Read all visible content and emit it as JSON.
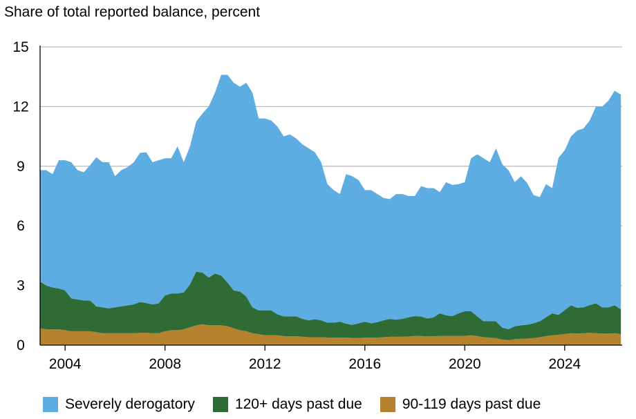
{
  "chart_data": {
    "type": "area",
    "stacked": true,
    "title": "",
    "ylabel": "Share of total reported balance, percent",
    "xlabel": "",
    "ylim": [
      0,
      15
    ],
    "yticks": [
      0,
      3,
      6,
      9,
      12,
      15
    ],
    "xlim": [
      2003.0,
      2026.3
    ],
    "xticks": [
      2004,
      2008,
      2012,
      2016,
      2020,
      2024
    ],
    "grid": "horizontal",
    "legend_position": "bottom",
    "colors": {
      "severely_derogatory": "#5DADE2",
      "days_120_plus": "#2E6B35",
      "days_90_119": "#B5832D"
    },
    "x": [
      2003.0,
      2003.25,
      2003.5,
      2003.75,
      2004.0,
      2004.25,
      2004.5,
      2004.75,
      2005.0,
      2005.25,
      2005.5,
      2005.75,
      2006.0,
      2006.25,
      2006.5,
      2006.75,
      2007.0,
      2007.25,
      2007.5,
      2007.75,
      2008.0,
      2008.25,
      2008.5,
      2008.75,
      2009.0,
      2009.25,
      2009.5,
      2009.75,
      2010.0,
      2010.25,
      2010.5,
      2010.75,
      2011.0,
      2011.25,
      2011.5,
      2011.75,
      2012.0,
      2012.25,
      2012.5,
      2012.75,
      2013.0,
      2013.25,
      2013.5,
      2013.75,
      2014.0,
      2014.25,
      2014.5,
      2014.75,
      2015.0,
      2015.25,
      2015.5,
      2015.75,
      2016.0,
      2016.25,
      2016.5,
      2016.75,
      2017.0,
      2017.25,
      2017.5,
      2017.75,
      2018.0,
      2018.25,
      2018.5,
      2018.75,
      2019.0,
      2019.25,
      2019.5,
      2019.75,
      2020.0,
      2020.25,
      2020.5,
      2020.75,
      2021.0,
      2021.25,
      2021.5,
      2021.75,
      2022.0,
      2022.25,
      2022.5,
      2022.75,
      2023.0,
      2023.25,
      2023.5,
      2023.75,
      2024.0,
      2024.25,
      2024.5,
      2024.75,
      2025.0,
      2025.25,
      2025.5,
      2025.75,
      2026.0,
      2026.25
    ],
    "series": [
      {
        "name": "90-119 days past due",
        "key": "days_90_119",
        "values": [
          0.85,
          0.8,
          0.8,
          0.8,
          0.75,
          0.7,
          0.7,
          0.7,
          0.7,
          0.65,
          0.6,
          0.6,
          0.6,
          0.6,
          0.6,
          0.6,
          0.62,
          0.62,
          0.6,
          0.6,
          0.7,
          0.75,
          0.75,
          0.8,
          0.9,
          1.0,
          1.05,
          1.0,
          1.0,
          1.0,
          0.95,
          0.85,
          0.75,
          0.7,
          0.6,
          0.55,
          0.5,
          0.5,
          0.5,
          0.45,
          0.45,
          0.45,
          0.42,
          0.4,
          0.4,
          0.4,
          0.38,
          0.38,
          0.38,
          0.38,
          0.36,
          0.36,
          0.38,
          0.38,
          0.38,
          0.4,
          0.42,
          0.42,
          0.42,
          0.44,
          0.46,
          0.46,
          0.44,
          0.45,
          0.46,
          0.46,
          0.46,
          0.46,
          0.46,
          0.5,
          0.45,
          0.4,
          0.38,
          0.35,
          0.28,
          0.25,
          0.3,
          0.32,
          0.33,
          0.35,
          0.4,
          0.45,
          0.5,
          0.52,
          0.56,
          0.6,
          0.58,
          0.6,
          0.62,
          0.6,
          0.58,
          0.58,
          0.6,
          0.55
        ]
      },
      {
        "name": "120+ days past due",
        "key": "days_120_plus",
        "values": [
          2.35,
          2.2,
          2.1,
          2.05,
          2.0,
          1.65,
          1.6,
          1.55,
          1.55,
          1.3,
          1.3,
          1.25,
          1.3,
          1.35,
          1.4,
          1.45,
          1.55,
          1.5,
          1.45,
          1.5,
          1.8,
          1.85,
          1.85,
          1.85,
          2.15,
          2.7,
          2.6,
          2.4,
          2.6,
          2.5,
          2.2,
          1.9,
          1.95,
          1.75,
          1.3,
          1.2,
          1.25,
          1.25,
          1.05,
          1.0,
          1.0,
          1.0,
          0.9,
          0.85,
          0.9,
          0.85,
          0.75,
          0.75,
          0.8,
          0.7,
          0.66,
          0.74,
          0.8,
          0.72,
          0.78,
          0.85,
          0.9,
          0.86,
          0.9,
          0.96,
          1.0,
          0.98,
          0.9,
          0.95,
          1.14,
          1.04,
          1.0,
          1.14,
          1.24,
          1.2,
          1.0,
          0.8,
          0.82,
          0.85,
          0.6,
          0.55,
          0.65,
          0.68,
          0.7,
          0.75,
          0.8,
          0.95,
          1.1,
          1.0,
          1.2,
          1.4,
          1.3,
          1.3,
          1.4,
          1.5,
          1.32,
          1.32,
          1.4,
          1.25
        ]
      },
      {
        "name": "Severely derogatory",
        "key": "severely_derogatory",
        "values": [
          5.6,
          5.8,
          5.7,
          6.45,
          6.55,
          6.85,
          6.5,
          6.45,
          6.8,
          7.5,
          7.3,
          7.35,
          6.6,
          6.85,
          6.95,
          7.15,
          7.5,
          7.58,
          7.15,
          7.2,
          6.9,
          6.8,
          7.4,
          6.55,
          6.95,
          7.55,
          8.0,
          8.6,
          9.1,
          10.1,
          10.45,
          10.45,
          10.3,
          10.75,
          10.8,
          9.65,
          9.65,
          9.55,
          9.45,
          9.05,
          9.15,
          8.95,
          8.78,
          8.65,
          8.4,
          7.95,
          6.97,
          6.67,
          6.42,
          7.52,
          7.48,
          7.2,
          6.62,
          6.7,
          6.44,
          6.15,
          6.03,
          6.32,
          6.28,
          6.1,
          6.04,
          6.56,
          6.56,
          6.5,
          6.1,
          6.7,
          6.6,
          6.5,
          6.5,
          7.7,
          8.15,
          8.2,
          8.0,
          8.7,
          8.22,
          8.0,
          7.25,
          7.5,
          7.12,
          6.45,
          6.25,
          6.7,
          6.3,
          7.9,
          8.04,
          8.5,
          8.92,
          9.0,
          9.28,
          9.9,
          10.1,
          10.4,
          10.8,
          10.8
        ]
      }
    ]
  }
}
